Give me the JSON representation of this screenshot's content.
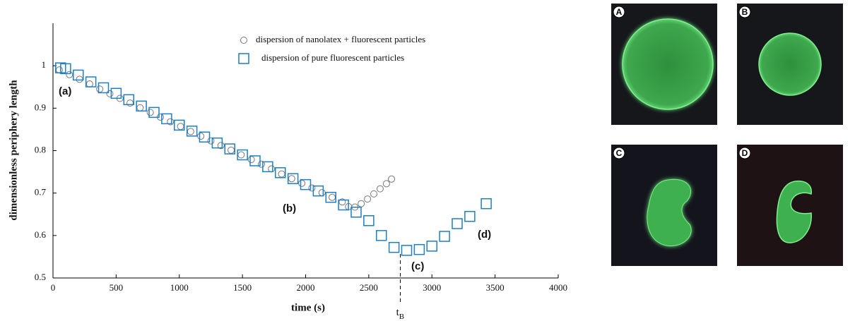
{
  "chart_data": {
    "type": "scatter",
    "x_label": "time (s)",
    "y_label": "dimensionless periphery length",
    "xlim": [
      0,
      4000
    ],
    "xticks": [
      0,
      500,
      1000,
      1500,
      2000,
      2500,
      3000,
      3500,
      4000
    ],
    "ylim": [
      0.5,
      1.1
    ],
    "yticks": [
      0.5,
      0.6,
      0.7,
      0.8,
      0.9,
      1
    ],
    "series": [
      {
        "name": "dispersion of nanolatex + fluorescent particles",
        "marker": "circle",
        "color": "#777777",
        "x": [
          50,
          130,
          210,
          290,
          370,
          450,
          530,
          610,
          690,
          770,
          850,
          930,
          1010,
          1090,
          1170,
          1250,
          1330,
          1410,
          1490,
          1570,
          1650,
          1730,
          1810,
          1890,
          1970,
          2050,
          2130,
          2210,
          2290,
          2340,
          2390,
          2440,
          2490,
          2540,
          2590,
          2640,
          2680
        ],
        "values": [
          0.99,
          0.979,
          0.968,
          0.957,
          0.945,
          0.934,
          0.923,
          0.912,
          0.901,
          0.89,
          0.879,
          0.868,
          0.857,
          0.845,
          0.834,
          0.823,
          0.812,
          0.801,
          0.79,
          0.779,
          0.768,
          0.757,
          0.745,
          0.734,
          0.723,
          0.712,
          0.701,
          0.69,
          0.679,
          0.668,
          0.667,
          0.675,
          0.686,
          0.698,
          0.71,
          0.722,
          0.733
        ]
      },
      {
        "name": "dispersion of pure fluorescent particles",
        "marker": "square",
        "color": "#1f7fc0",
        "x": [
          60,
          100,
          200,
          300,
          400,
          500,
          600,
          700,
          800,
          900,
          1000,
          1100,
          1200,
          1300,
          1400,
          1500,
          1600,
          1700,
          1800,
          1900,
          2000,
          2100,
          2200,
          2300,
          2400,
          2500,
          2600,
          2700,
          2800,
          2900,
          3000,
          3100,
          3200,
          3300,
          3430
        ],
        "values": [
          0.995,
          0.993,
          0.978,
          0.962,
          0.948,
          0.935,
          0.92,
          0.905,
          0.89,
          0.875,
          0.86,
          0.846,
          0.832,
          0.818,
          0.804,
          0.79,
          0.776,
          0.762,
          0.748,
          0.734,
          0.72,
          0.705,
          0.69,
          0.672,
          0.655,
          0.635,
          0.6,
          0.572,
          0.565,
          0.567,
          0.575,
          0.598,
          0.628,
          0.645,
          0.675
        ]
      }
    ],
    "annotations": [
      "(a)",
      "(b)",
      "(c)",
      "(d)"
    ],
    "marker_line": {
      "x": 2750,
      "label": "t",
      "label_sub": "B"
    }
  },
  "panels": [
    {
      "label": "A"
    },
    {
      "label": "B"
    },
    {
      "label": "C"
    },
    {
      "label": "D"
    }
  ]
}
